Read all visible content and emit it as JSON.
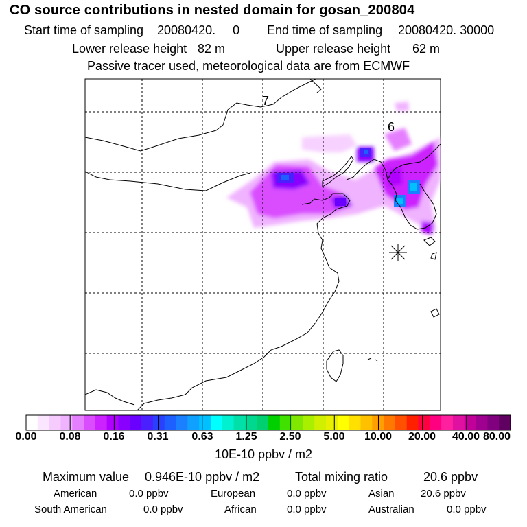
{
  "header": {
    "title": "CO  source contributions in nested domain for gosan_200804",
    "start_label": "Start time of sampling",
    "start_value": "20080420.     0",
    "end_label": "End time of sampling",
    "end_value": "20080420. 30000",
    "lower_label": "Lower release height",
    "lower_value": "82 m",
    "upper_label": "Upper release height",
    "upper_value": "62 m",
    "info": "Passive tracer used, meteorological data are from ECMWF"
  },
  "map": {
    "labels": [
      "7",
      "6"
    ],
    "receptor_marker": "asterisk-star"
  },
  "colorbar": {
    "ticks": [
      "0.00",
      "0.08",
      "0.16",
      "0.31",
      "0.63",
      "1.25",
      "2.50",
      "5.00",
      "10.00",
      "20.00",
      "40.00",
      "80.00"
    ],
    "units": "10E-10 ppbv / m2",
    "colors": [
      "#ffffff",
      "#fbe6ff",
      "#f6ccff",
      "#f0b3ff",
      "#e57fff",
      "#d94dff",
      "#cc22ff",
      "#b000ff",
      "#8a00ff",
      "#6a00ff",
      "#4a20ff",
      "#2a40ff",
      "#1e60ff",
      "#1a80ff",
      "#10a0ff",
      "#00c0ff",
      "#00ffff",
      "#00f0d0",
      "#00e0a8",
      "#00d890",
      "#00d070",
      "#00d000",
      "#40e000",
      "#80e800",
      "#a8f000",
      "#d0f000",
      "#e8f000",
      "#ffff00",
      "#ffe000",
      "#ffc000",
      "#ffa000",
      "#ff7800",
      "#ff5000",
      "#ff2000",
      "#ff0040",
      "#ff0080",
      "#ff20a0",
      "#e010a0",
      "#c00098",
      "#a00090",
      "#800080",
      "#600060"
    ]
  },
  "stats": {
    "max_label": "Maximum value",
    "max_value": "0.946E-10 ppbv / m2",
    "total_label": "Total mixing ratio",
    "total_value": "20.6 ppbv",
    "regions": [
      {
        "name": "American",
        "value": "0.0 ppbv"
      },
      {
        "name": "European",
        "value": "0.0 ppbv"
      },
      {
        "name": "Asian",
        "value": "20.6 ppbv"
      },
      {
        "name": "South American",
        "value": "0.0 ppbv"
      },
      {
        "name": "African",
        "value": "0.0 ppbv"
      },
      {
        "name": "Australian",
        "value": "0.0 ppbv"
      }
    ]
  }
}
